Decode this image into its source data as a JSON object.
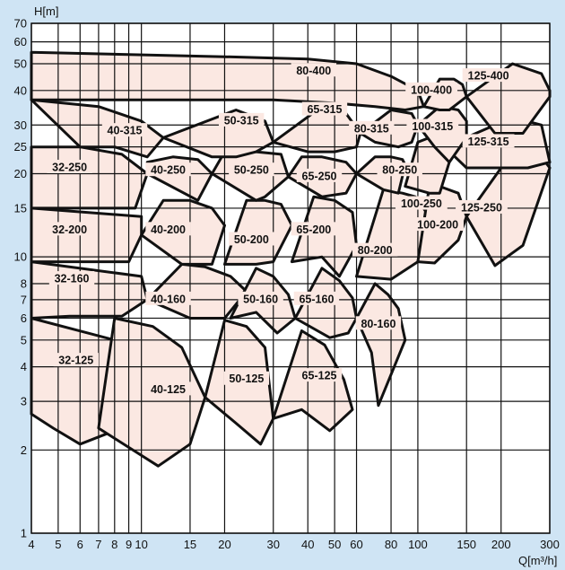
{
  "chart_data": {
    "type": "area",
    "title": "",
    "xlabel": "Q[m³/h]",
    "ylabel": "H[m]",
    "xscale": "log",
    "yscale": "log",
    "xlim": [
      4,
      300
    ],
    "ylim": [
      1,
      70
    ],
    "grid": true,
    "background": "#cfe4f4",
    "region_fill": "#fbe8e2",
    "xticks": [
      "4",
      "5",
      "6",
      "7",
      "8",
      "9",
      "10",
      "15",
      "20",
      "30",
      "40",
      "50",
      "60",
      "80",
      "100",
      "150",
      "200",
      "300"
    ],
    "yticks": [
      "1",
      "2",
      "3",
      "4",
      "5",
      "6",
      "7",
      "8",
      "10",
      "15",
      "20",
      "25",
      "30",
      "40",
      "50",
      "60",
      "70"
    ],
    "xtick_values": [
      4,
      5,
      6,
      7,
      8,
      9,
      10,
      15,
      20,
      30,
      40,
      50,
      60,
      80,
      100,
      150,
      200,
      300
    ],
    "ytick_values": [
      1,
      2,
      3,
      4,
      5,
      6,
      7,
      8,
      10,
      15,
      20,
      25,
      30,
      40,
      50,
      60,
      70
    ],
    "regions": [
      {
        "name": "32-125",
        "Q": [
          4,
          4,
          4.8,
          6,
          8,
          10,
          11,
          4
        ],
        "H": [
          6,
          2.7,
          2.4,
          2.1,
          2.35,
          3,
          4.6,
          6
        ]
      },
      {
        "name": "40-125",
        "Q": [
          7,
          11.5,
          15,
          17,
          14,
          11,
          8,
          7
        ],
        "H": [
          2.4,
          1.75,
          2.1,
          3.1,
          4.7,
          5.6,
          6,
          2.4
        ]
      },
      {
        "name": "50-125",
        "Q": [
          17,
          22,
          27,
          30,
          28,
          24,
          20,
          17
        ],
        "H": [
          3.1,
          2.5,
          2.1,
          2.6,
          4.7,
          5.6,
          5.9,
          3.1
        ]
      },
      {
        "name": "65-125",
        "Q": [
          30,
          38,
          48,
          58,
          54,
          46,
          38,
          30
        ],
        "H": [
          2.6,
          2.8,
          2.35,
          2.8,
          3.6,
          4.8,
          5.4,
          2.6
        ]
      },
      {
        "name": "32-160",
        "Q": [
          4,
          4,
          5.5,
          7,
          8.5,
          10.5,
          10,
          4
        ],
        "H": [
          9.6,
          6,
          6.1,
          6.1,
          6.1,
          7,
          8.5,
          9.6
        ]
      },
      {
        "name": "40-160",
        "Q": [
          10.5,
          15,
          20,
          24,
          21,
          17,
          14,
          10.5
        ],
        "H": [
          7,
          6,
          6,
          7.5,
          8.5,
          9.2,
          9.4,
          7
        ]
      },
      {
        "name": "50-160",
        "Q": [
          21,
          26,
          31,
          36,
          34,
          30,
          26,
          21
        ],
        "H": [
          6,
          6.3,
          5.3,
          6,
          7.3,
          8.5,
          9.1,
          6
        ]
      },
      {
        "name": "65-160",
        "Q": [
          36,
          48,
          56,
          60,
          58,
          52,
          45,
          36
        ],
        "H": [
          6,
          5.1,
          5.3,
          6,
          7.1,
          8.2,
          9.1,
          6
        ]
      },
      {
        "name": "80-160",
        "Q": [
          60,
          68,
          72,
          90,
          85,
          78,
          70,
          60
        ],
        "H": [
          6,
          4.5,
          2.9,
          5,
          6.5,
          7.3,
          8,
          6
        ]
      },
      {
        "name": "32-200",
        "Q": [
          4,
          4,
          6,
          8,
          9,
          10,
          10,
          4
        ],
        "H": [
          15,
          9.6,
          9.6,
          9.6,
          9.6,
          12,
          14,
          15
        ]
      },
      {
        "name": "40-200",
        "Q": [
          10,
          14,
          18,
          20,
          18,
          15,
          12,
          10
        ],
        "H": [
          12,
          9.4,
          9.4,
          13,
          15,
          16,
          16,
          12
        ]
      },
      {
        "name": "50-200",
        "Q": [
          20,
          26,
          30,
          35,
          32,
          28,
          24,
          20
        ],
        "H": [
          9.4,
          9.4,
          9.6,
          13,
          15.5,
          16,
          16,
          9.4
        ]
      },
      {
        "name": "65-200",
        "Q": [
          35,
          45,
          52,
          60,
          58,
          50,
          42,
          35
        ],
        "H": [
          9.6,
          10,
          8.5,
          11,
          14.5,
          16,
          16.5,
          9.6
        ]
      },
      {
        "name": "80-200",
        "Q": [
          60,
          80,
          100,
          110,
          98,
          88,
          75,
          60
        ],
        "H": [
          8.5,
          8.3,
          9.6,
          14,
          16.5,
          17,
          17.5,
          8.5
        ]
      },
      {
        "name": "100-200",
        "Q": [
          100,
          115,
          140,
          150,
          140,
          120,
          110,
          100
        ],
        "H": [
          9.6,
          9.5,
          11.5,
          14,
          17,
          18,
          18,
          9.6
        ]
      },
      {
        "name": "125-250",
        "Q": [
          150,
          190,
          210,
          240,
          300,
          280,
          220,
          150
        ],
        "H": [
          14,
          9.3,
          10,
          11,
          21,
          23,
          24,
          14
        ]
      },
      {
        "name": "32-250",
        "Q": [
          4,
          4,
          7,
          9.5,
          10.5,
          8.5,
          6,
          4
        ],
        "H": [
          25,
          15,
          15,
          15,
          20,
          23.5,
          25,
          25
        ]
      },
      {
        "name": "40-250",
        "Q": [
          10.5,
          16,
          18,
          16,
          13,
          10.5,
          10.5
        ],
        "H": [
          20,
          16,
          20,
          22.5,
          23,
          22,
          20
        ]
      },
      {
        "name": "50-250",
        "Q": [
          18,
          26,
          28,
          34,
          32,
          26,
          20,
          18
        ],
        "H": [
          20,
          16,
          16.5,
          19.5,
          23.5,
          24,
          24,
          20
        ]
      },
      {
        "name": "65-250",
        "Q": [
          34,
          45,
          55,
          60,
          55,
          45,
          38,
          34
        ],
        "H": [
          19.5,
          16.5,
          17,
          20,
          22,
          23,
          23,
          19.5
        ]
      },
      {
        "name": "80-250",
        "Q": [
          60,
          75,
          85,
          90,
          88,
          80,
          70,
          60
        ],
        "H": [
          20,
          17.5,
          17,
          21.5,
          22.5,
          23,
          23,
          20
        ]
      },
      {
        "name": "100-250",
        "Q": [
          90,
          110,
          120,
          130,
          125,
          110,
          100,
          90
        ],
        "H": [
          18,
          17,
          17,
          22,
          26,
          27,
          26,
          18
        ]
      },
      {
        "name": "125-315",
        "Q": [
          125,
          150,
          200,
          250,
          300,
          280,
          220,
          125
        ],
        "H": [
          25,
          21,
          21,
          21,
          22,
          30,
          32,
          25
        ]
      },
      {
        "name": "40-315",
        "Q": [
          4,
          6,
          8,
          10.5,
          12,
          10,
          7,
          4
        ],
        "H": [
          37,
          25,
          25,
          23,
          27,
          31,
          35,
          37
        ]
      },
      {
        "name": "50-315",
        "Q": [
          12,
          18,
          22,
          26,
          30,
          28,
          22,
          12
        ],
        "H": [
          27,
          23,
          23,
          24,
          26,
          31,
          34,
          27
        ]
      },
      {
        "name": "65-315",
        "Q": [
          30,
          40,
          50,
          60,
          62,
          55,
          45,
          30
        ],
        "H": [
          26,
          24,
          24,
          25,
          28,
          33,
          35,
          26
        ]
      },
      {
        "name": "80-315",
        "Q": [
          62,
          70,
          85,
          95,
          100,
          95,
          80,
          62
        ],
        "H": [
          28,
          26,
          25,
          26,
          30,
          33,
          34,
          28
        ]
      },
      {
        "name": "100-315",
        "Q": [
          100,
          115,
          130,
          150,
          150,
          140,
          120,
          100
        ],
        "H": [
          30,
          25,
          22,
          27,
          31,
          34,
          35,
          30
        ]
      },
      {
        "name": "80-400",
        "Q": [
          4,
          20,
          40,
          60,
          80,
          100,
          105,
          90,
          70,
          50,
          30,
          10,
          4
        ],
        "H": [
          55,
          53,
          52,
          50,
          45,
          40,
          35,
          34,
          35,
          36,
          37,
          37,
          37
        ]
      },
      {
        "name": "100-400",
        "Q": [
          105,
          120,
          130,
          150,
          145,
          135,
          120,
          105
        ],
        "H": [
          35,
          34,
          34,
          38,
          42,
          44,
          44,
          35
        ]
      },
      {
        "name": "125-400",
        "Q": [
          150,
          190,
          240,
          300,
          300,
          280,
          220,
          150
        ],
        "H": [
          38,
          28,
          28,
          38,
          40,
          46,
          50,
          38
        ]
      }
    ],
    "label_positions": [
      {
        "name": "32-125",
        "Q": 5.8,
        "H": 4.2
      },
      {
        "name": "40-125",
        "Q": 12.5,
        "H": 3.3
      },
      {
        "name": "50-125",
        "Q": 24,
        "H": 3.6
      },
      {
        "name": "65-125",
        "Q": 44,
        "H": 3.7
      },
      {
        "name": "32-160",
        "Q": 5.6,
        "H": 8.3
      },
      {
        "name": "40-160",
        "Q": 12.5,
        "H": 7
      },
      {
        "name": "50-160",
        "Q": 27,
        "H": 7
      },
      {
        "name": "65-160",
        "Q": 43,
        "H": 7
      },
      {
        "name": "80-160",
        "Q": 72,
        "H": 5.7
      },
      {
        "name": "32-200",
        "Q": 5.5,
        "H": 12.5
      },
      {
        "name": "40-200",
        "Q": 12.5,
        "H": 12.5
      },
      {
        "name": "50-200",
        "Q": 25,
        "H": 11.5
      },
      {
        "name": "65-200",
        "Q": 42,
        "H": 12.5
      },
      {
        "name": "80-200",
        "Q": 70,
        "H": 10.5
      },
      {
        "name": "100-200",
        "Q": 118,
        "H": 13
      },
      {
        "name": "125-250",
        "Q": 170,
        "H": 15
      },
      {
        "name": "32-250",
        "Q": 5.5,
        "H": 21
      },
      {
        "name": "40-250",
        "Q": 12.5,
        "H": 20.5
      },
      {
        "name": "50-250",
        "Q": 25,
        "H": 20.5
      },
      {
        "name": "65-250",
        "Q": 44,
        "H": 19.5
      },
      {
        "name": "80-250",
        "Q": 86,
        "H": 20.5
      },
      {
        "name": "100-250",
        "Q": 103,
        "H": 15.5
      },
      {
        "name": "125-315",
        "Q": 180,
        "H": 26
      },
      {
        "name": "40-315",
        "Q": 8.7,
        "H": 28.5
      },
      {
        "name": "50-315",
        "Q": 23,
        "H": 31
      },
      {
        "name": "65-315",
        "Q": 46,
        "H": 34
      },
      {
        "name": "80-315",
        "Q": 68,
        "H": 29
      },
      {
        "name": "100-315",
        "Q": 113,
        "H": 29.5
      },
      {
        "name": "80-400",
        "Q": 42,
        "H": 47
      },
      {
        "name": "100-400",
        "Q": 112,
        "H": 40
      },
      {
        "name": "125-400",
        "Q": 180,
        "H": 45
      }
    ]
  }
}
